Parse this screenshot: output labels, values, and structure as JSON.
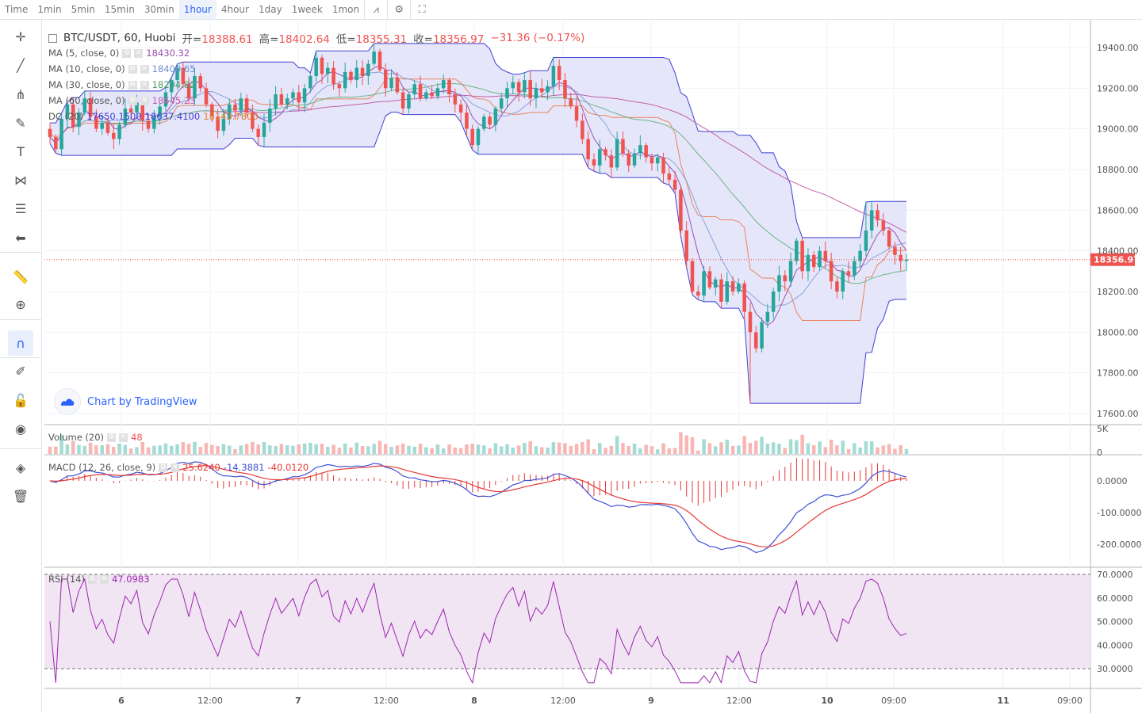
{
  "toolbar": {
    "time_label": "Time",
    "timeframes": [
      "1min",
      "5min",
      "15min",
      "30min",
      "1hour",
      "4hour",
      "1day",
      "1week",
      "1mon"
    ],
    "active_timeframe": "1hour",
    "icons": [
      "chart-type-icon",
      "settings-icon",
      "fullscreen-icon"
    ]
  },
  "left_tools": [
    "crosshair-icon",
    "trend-line-icon",
    "pitchfork-icon",
    "brush-icon",
    "text-icon",
    "pattern-icon",
    "fib-icon",
    "back-arrow-icon",
    "ruler-icon",
    "zoom-icon",
    "magnet-icon",
    "lock-drawing-icon",
    "unlock-icon",
    "eye-icon",
    "layers-icon",
    "trash-icon"
  ],
  "header": {
    "symbol": "BTC/USDT, 60, Huobi",
    "open_label": "开=",
    "open": "18388.61",
    "high_label": "高=",
    "high": "18402.64",
    "low_label": "低=",
    "low": "18355.31",
    "close_label": "收=",
    "close": "18356.97",
    "change": "−31.36 (−0.17%)"
  },
  "indicators": [
    {
      "label": "MA (5, close, 0)",
      "value": "18430.32",
      "color": "#9c4fb0"
    },
    {
      "label": "MA (10, close, 0)",
      "value": "18400.65",
      "color": "#8aa3d6"
    },
    {
      "label": "MA (30, close, 0)",
      "value": "18294.82",
      "color": "#6bb583"
    },
    {
      "label": "MA (60, close, 0)",
      "value": "18645.23",
      "color": "#c05ea8"
    }
  ],
  "dc": {
    "label": "DC (20)",
    "values": [
      "17650.1500",
      "18637.4100",
      "18143.7800"
    ]
  },
  "watermark": "Chart by TradingView",
  "last_price": "18356.97",
  "price_axis": [
    "19400.00",
    "19200.00",
    "19000.00",
    "18800.00",
    "18600.00",
    "18400.00",
    "18200.00",
    "18000.00",
    "17800.00",
    "17600.00"
  ],
  "volume_legend": {
    "label": "Volume (20)",
    "value": "48",
    "axis": [
      "5K",
      "0"
    ]
  },
  "macd_legend": {
    "label": "MACD (12, 26, close, 9)",
    "values": [
      "25.6240",
      "-14.3881",
      "-40.0120"
    ],
    "axis": [
      "0.0000",
      "-100.0000",
      "-200.0000"
    ]
  },
  "rsi_legend": {
    "label": "RSI (14)",
    "value": "47.0983",
    "axis": [
      "70.0000",
      "60.0000",
      "50.0000",
      "40.0000",
      "30.0000"
    ]
  },
  "time_axis": [
    "6",
    "12:00",
    "7",
    "12:00",
    "8",
    "12:00",
    "9",
    "12:00",
    "10",
    "09:00",
    "11",
    "09:00"
  ],
  "colors": {
    "up": "#26a69a",
    "down": "#ef5350",
    "dc_fill": "#e3e3fb",
    "dc_line": "#3f3fd1",
    "macd_line": "#3f51d6",
    "signal_line": "#e53935",
    "rsi_line": "#9c27b0",
    "rsi_band": "#f1e4f3"
  },
  "chart_data": {
    "type": "candlestick",
    "start_price": 19000,
    "closes": [
      18960,
      18900,
      19050,
      19120,
      19010,
      19080,
      19150,
      19060,
      19000,
      19030,
      18980,
      18950,
      19020,
      19100,
      19080,
      19130,
      19040,
      19000,
      19060,
      19110,
      19180,
      19240,
      19300,
      19220,
      19150,
      19260,
      19200,
      19120,
      19060,
      18990,
      19050,
      19120,
      19090,
      19150,
      19080,
      19000,
      18960,
      19030,
      19100,
      19170,
      19120,
      19150,
      19180,
      19130,
      19200,
      19260,
      19350,
      19270,
      19300,
      19220,
      19200,
      19280,
      19240,
      19300,
      19260,
      19320,
      19380,
      19290,
      19200,
      19250,
      19180,
      19100,
      19170,
      19220,
      19150,
      19180,
      19160,
      19200,
      19240,
      19170,
      19120,
      19080,
      19000,
      18920,
      19000,
      19060,
      19020,
      19100,
      19150,
      19200,
      19230,
      19180,
      19240,
      19150,
      19200,
      19180,
      19210,
      19310,
      19240,
      19150,
      19110,
      19040,
      18950,
      18850,
      18820,
      18900,
      18870,
      18810,
      18950,
      18880,
      18820,
      18880,
      18920,
      18860,
      18830,
      18860,
      18780,
      18750,
      18700,
      18500,
      18350,
      18200,
      18180,
      18300,
      18220,
      18260,
      18150,
      18250,
      18200,
      18240,
      18100,
      18000,
      17920,
      18050,
      18100,
      18200,
      18280,
      18250,
      18350,
      18450,
      18300,
      18380,
      18320,
      18400,
      18350,
      18250,
      18200,
      18300,
      18280,
      18350,
      18400,
      18500,
      18600,
      18550,
      18500,
      18420,
      18380,
      18350,
      18357
    ]
  }
}
